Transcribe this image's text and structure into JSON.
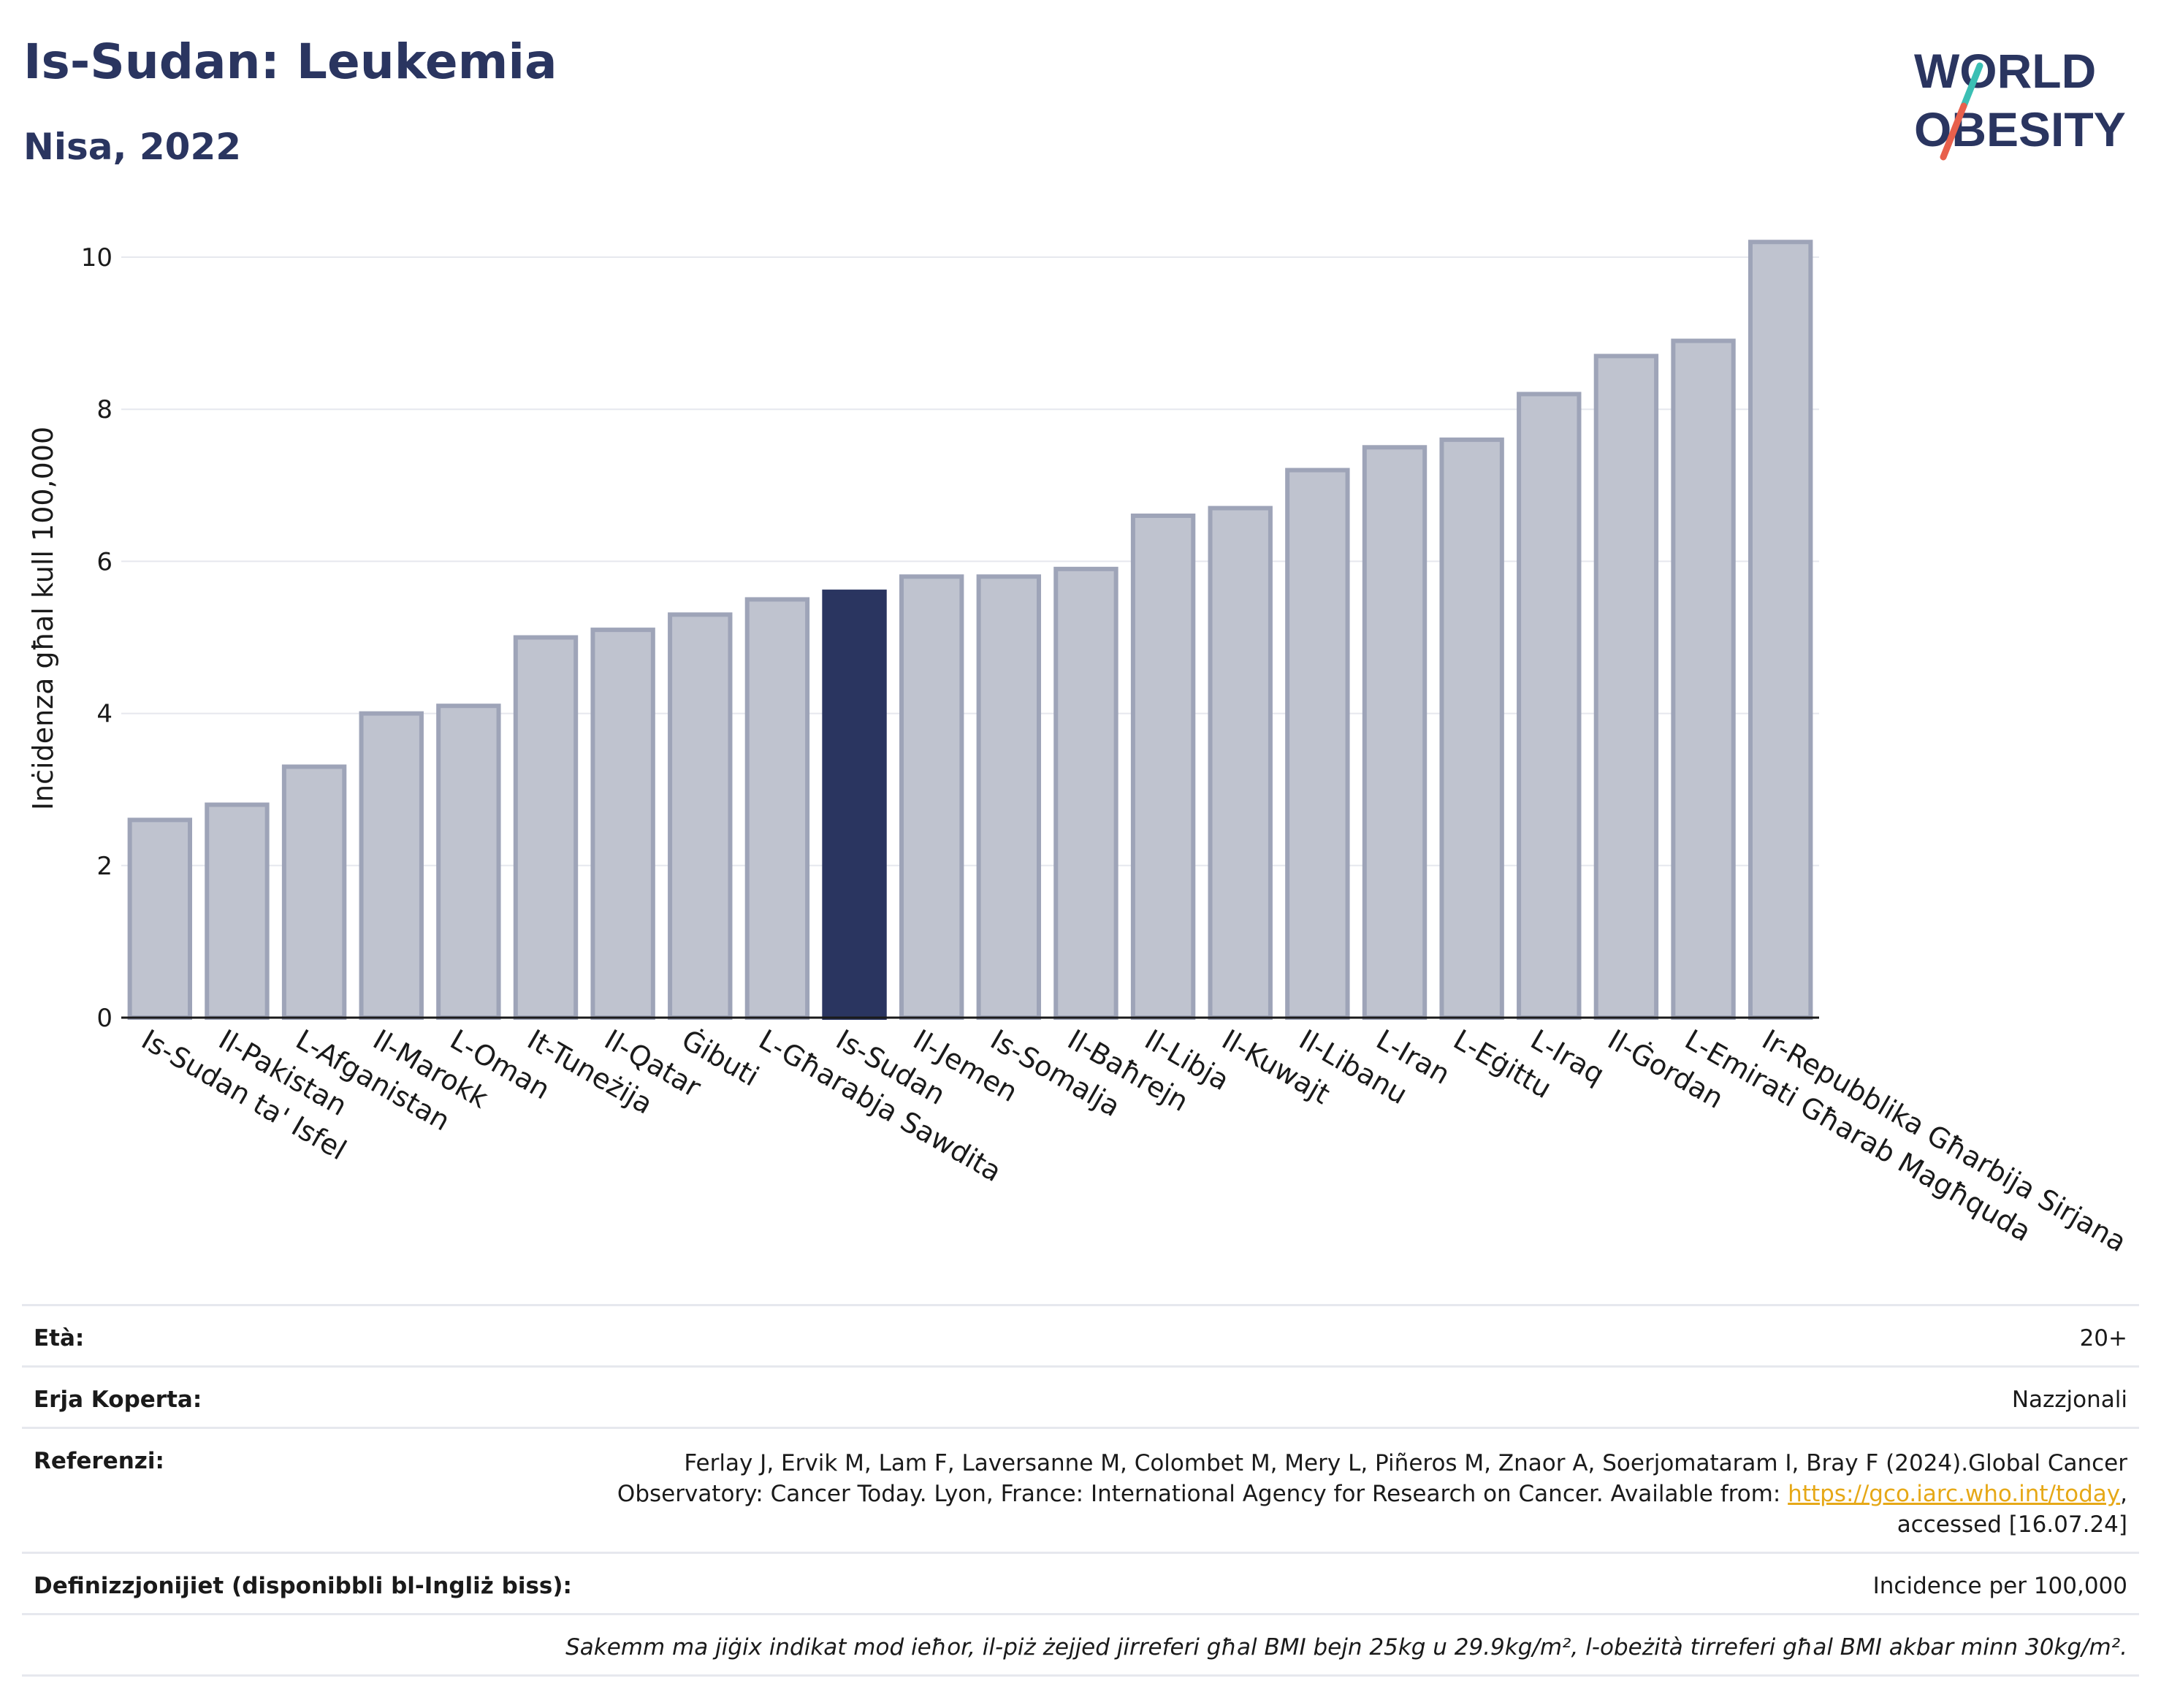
{
  "header": {
    "title": "Is-Sudan: Leukemia",
    "subtitle": "Nisa, 2022"
  },
  "logo": {
    "line1": "WORLD",
    "line2": "OBESITY",
    "slash_colors": [
      "#3bbfb4",
      "#e8604c"
    ]
  },
  "colors": {
    "bar": "#bfc3cf",
    "bar_border": "#9ea4b8",
    "highlight": "#2a3560",
    "grid": "#e6e8ee"
  },
  "chart_data": {
    "type": "bar",
    "ylabel": "Inċidenza għal kull 100,000",
    "ylim": [
      0,
      10.5
    ],
    "yticks": [
      0,
      2,
      4,
      6,
      8,
      10
    ],
    "highlight": "Is-Sudan",
    "categories": [
      "Is-Sudan ta' Isfel",
      "Il-Pakistan",
      "L-Afganistan",
      "Il-Marokk",
      "L-Oman",
      "It-Tuneżija",
      "Il-Qatar",
      "Ġibuti",
      "L-Għarabja Sawdita",
      "Is-Sudan",
      "Il-Jemen",
      "Is-Somalja",
      "Il-Baħrejn",
      "Il-Libja",
      "Il-Kuwajt",
      "Il-Libanu",
      "L-Iran",
      "L-Eġittu",
      "L-Iraq",
      "Il-Ġordan",
      "L-Emirati Għarab Magħquda",
      "Ir-Repubblika Għarbija Sirjana"
    ],
    "values": [
      2.6,
      2.8,
      3.3,
      4.0,
      4.1,
      5.0,
      5.1,
      5.3,
      5.5,
      5.6,
      5.8,
      5.8,
      5.9,
      6.6,
      6.7,
      7.2,
      7.5,
      7.6,
      8.2,
      8.7,
      8.9,
      10.2
    ]
  },
  "info": {
    "age_label": "Età:",
    "age_value": "20+",
    "area_label": "Erja Koperta:",
    "area_value": "Nazzjonali",
    "ref_label": "Referenzi:",
    "ref_line1": "Ferlay J, Ervik M, Lam F, Laversanne M, Colombet M, Mery L, Piñeros M, Znaor A, Soerjomataram I, Bray F (2024).Global Cancer",
    "ref_line2_pre": "Observatory: Cancer Today. Lyon, France: International Agency for Research on Cancer. Available from: ",
    "ref_link": "https://gco.iarc.who.int/today",
    "ref_line2_post": ",",
    "ref_line3": "accessed [16.07.24]",
    "def_label": "Definizzjonijiet (disponibbli bl-Ingliż biss):",
    "def_value": "Incidence per 100,000",
    "note": "Sakemm ma jiġix indikat mod ieħor, il-piż żejjed jirreferi għal BMI bejn 25kg u 29.9kg/m², l-obeżità tirreferi għal BMI akbar minn 30kg/m²."
  }
}
